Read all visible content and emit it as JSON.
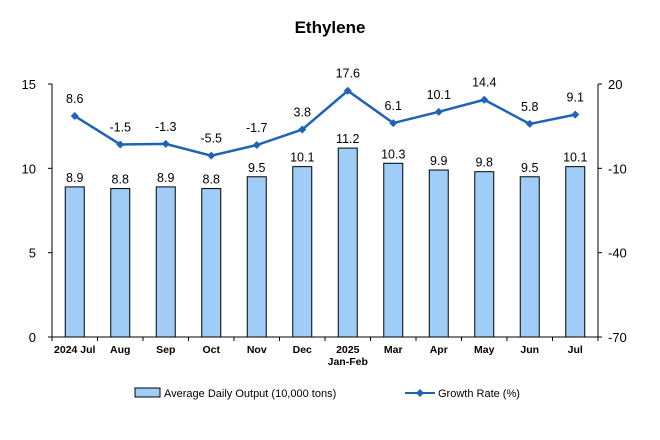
{
  "chart_data": {
    "type": "bar",
    "title": "Ethylene",
    "categories": [
      [
        "2024 Jul"
      ],
      [
        "Aug"
      ],
      [
        "Sep"
      ],
      [
        "Oct"
      ],
      [
        "Nov"
      ],
      [
        "Dec"
      ],
      [
        "2025",
        "Jan-Feb"
      ],
      [
        "Mar"
      ],
      [
        "Apr"
      ],
      [
        "May"
      ],
      [
        "Jun"
      ],
      [
        "Jul"
      ]
    ],
    "series": [
      {
        "name": "Average Daily Output (10,000 tons)",
        "type": "bar",
        "axis": "left",
        "values": [
          8.9,
          8.8,
          8.9,
          8.8,
          9.5,
          10.1,
          11.2,
          10.3,
          9.9,
          9.8,
          9.5,
          10.1
        ],
        "labels": [
          "8.9",
          "8.8",
          "8.9",
          "8.8",
          "9.5",
          "10.1",
          "11.2",
          "10.3",
          "9.9",
          "9.8",
          "9.5",
          "10.1"
        ],
        "color": "#9fcdf7"
      },
      {
        "name": "Growth Rate (%)",
        "type": "line",
        "axis": "right",
        "values": [
          8.6,
          -1.5,
          -1.3,
          -5.5,
          -1.7,
          3.8,
          17.6,
          6.1,
          10.1,
          14.4,
          5.8,
          9.1
        ],
        "labels": [
          "8.6",
          "-1.5",
          "-1.3",
          "-5.5",
          "-1.7",
          "3.8",
          "17.6",
          "6.1",
          "10.1",
          "14.4",
          "5.8",
          "9.1"
        ],
        "color": "#1f63b5"
      }
    ],
    "y_left": {
      "lim": [
        0,
        15
      ],
      "ticks": [
        "0",
        "5",
        "10",
        "15"
      ]
    },
    "y_right": {
      "lim": [
        -70,
        20
      ],
      "ticks": [
        "-70",
        "-40",
        "-10",
        "20"
      ]
    },
    "grid": false,
    "legend_position": "bottom"
  }
}
